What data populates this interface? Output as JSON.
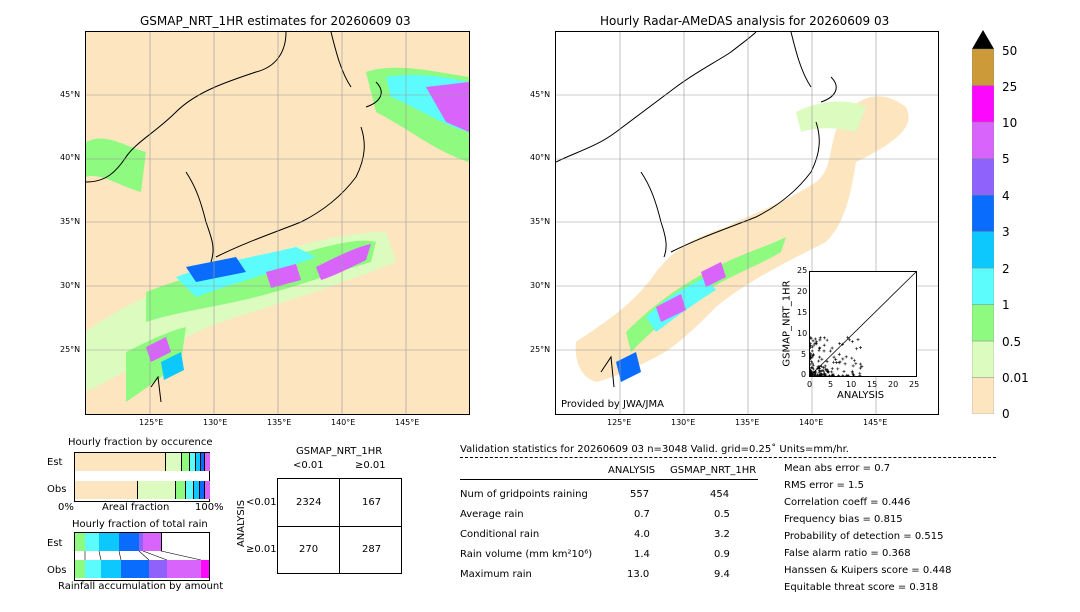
{
  "left_map": {
    "title": "GSMAP_NRT_1HR estimates for 20260609 03",
    "lat_labels": [
      "45°N",
      "40°N",
      "35°N",
      "30°N",
      "25°N"
    ],
    "lon_labels": [
      "125°E",
      "130°E",
      "135°E",
      "140°E",
      "145°E"
    ]
  },
  "right_map": {
    "title": "Hourly Radar-AMeDAS analysis for 20260609 03",
    "lat_labels": [
      "45°N",
      "40°N",
      "35°N",
      "30°N",
      "25°N"
    ],
    "lon_labels": [
      "125°E",
      "130°E",
      "135°E",
      "140°E",
      "145°E"
    ],
    "credit": "Provided by JWA/JMA"
  },
  "colorbar": {
    "levels": [
      "0",
      "0.01",
      "0.5",
      "1",
      "2",
      "3",
      "4",
      "5",
      "10",
      "25",
      "50"
    ],
    "colors": [
      "#fce5bf",
      "#dcfcbf",
      "#8efa80",
      "#5cfcfc",
      "#0cc8fc",
      "#0a6cfc",
      "#8f62fc",
      "#d864fc",
      "#fc08fc",
      "#cc9a38"
    ]
  },
  "scatter": {
    "xlabel": "ANALYSIS",
    "ylabel": "GSMAP_NRT_1HR",
    "ticks": [
      "0",
      "5",
      "10",
      "15",
      "20",
      "25"
    ]
  },
  "occurrence": {
    "title": "Hourly fraction by occurence",
    "row_labels": [
      "Est",
      "Obs"
    ],
    "axis_left": "0%",
    "axis_mid": "Areal fraction",
    "axis_right": "100%"
  },
  "total_rain": {
    "title": "Hourly fraction of total rain",
    "row_labels": [
      "Est",
      "Obs"
    ],
    "axis_mid": "Rainfall accumulation by amount"
  },
  "contingency": {
    "col_header": "GSMAP_NRT_1HR",
    "col_labels": [
      "<0.01",
      "≥0.01"
    ],
    "row_axis": "ANALYSIS",
    "row_labels": [
      "<0.01",
      "≥0.01"
    ],
    "cells": [
      "2324",
      "167",
      "270",
      "287"
    ]
  },
  "validation": {
    "header": "Validation statistics for 20260609 03  n=3048 Valid. grid=0.25˚ Units=mm/hr.",
    "col_analysis": "ANALYSIS",
    "col_gsmap": "GSMAP_NRT_1HR",
    "rows": [
      {
        "label": "Num of gridpoints raining",
        "analysis": "557",
        "gsmap": "454"
      },
      {
        "label": "Average rain",
        "analysis": "0.7",
        "gsmap": "0.5"
      },
      {
        "label": "Conditional rain",
        "analysis": "4.0",
        "gsmap": "3.2"
      },
      {
        "label": "Rain volume (mm km²10⁶)",
        "analysis": "1.4",
        "gsmap": "0.9"
      },
      {
        "label": "Maximum rain",
        "analysis": "13.0",
        "gsmap": "9.4"
      }
    ],
    "scores": [
      "Mean abs error =    0.7",
      "RMS error =    1.5",
      "Correlation coeff =  0.446",
      "Frequency bias =  0.815",
      "Probability of detection =  0.515",
      "False alarm ratio =  0.368",
      "Hanssen & Kuipers score =  0.448",
      "Equitable threat score =  0.318"
    ]
  },
  "chart_data": [
    {
      "type": "heatmap",
      "title": "GSMAP_NRT_1HR estimates for 20260609 03",
      "x_ticks": [
        "125°E",
        "130°E",
        "135°E",
        "140°E",
        "145°E"
      ],
      "y_ticks": [
        "45°N",
        "40°N",
        "35°N",
        "30°N",
        "25°N"
      ],
      "xlim": [
        120,
        150
      ],
      "ylim": [
        20,
        50
      ]
    },
    {
      "type": "heatmap",
      "title": "Hourly Radar-AMeDAS analysis for 20260609 03",
      "x_ticks": [
        "125°E",
        "130°E",
        "135°E",
        "140°E",
        "145°E"
      ],
      "y_ticks": [
        "45°N",
        "40°N",
        "35°N",
        "30°N",
        "25°N"
      ],
      "xlim": [
        120,
        150
      ],
      "ylim": [
        20,
        50
      ]
    },
    {
      "type": "scatter",
      "xlabel": "ANALYSIS",
      "ylabel": "GSMAP_NRT_1HR",
      "xlim": [
        0,
        25
      ],
      "ylim": [
        0,
        25
      ]
    }
  ]
}
